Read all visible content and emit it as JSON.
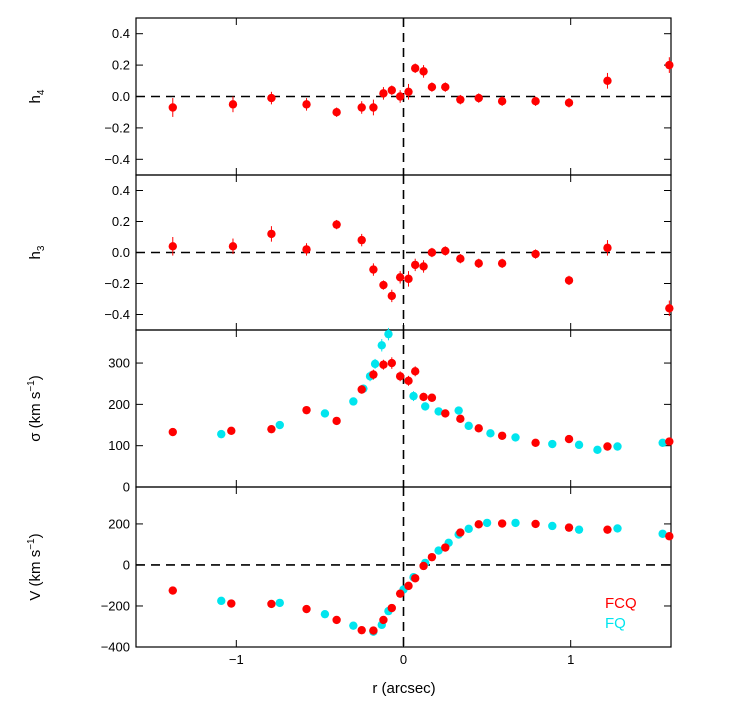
{
  "chart_data": {
    "type": "scatter",
    "xlabel": "r (arcsec)",
    "xlim": [
      -1.6,
      1.6
    ],
    "x_ticks": [
      -1,
      0,
      1
    ],
    "x_tick_labels": [
      "−1",
      "0",
      "1"
    ],
    "colors": {
      "FCQ": "#ff0000",
      "FQ": "#00e5ee"
    },
    "legend": {
      "position": "bottom-right",
      "entries": [
        "FCQ",
        "FQ"
      ]
    },
    "panels": [
      {
        "id": "h4",
        "ylabel_main": "h",
        "ylabel_sub": "4",
        "ylim": [
          -0.5,
          0.5
        ],
        "y_ticks": [
          0.4,
          0.2,
          0.0,
          -0.2,
          -0.4
        ],
        "y_tick_labels": [
          "0.4",
          "0.2",
          "0.0",
          "−0.2",
          "−0.4"
        ],
        "zero_line": true,
        "series": [
          {
            "name": "FCQ",
            "points": [
              {
                "x": -1.38,
                "y": -0.07,
                "err": 0.06
              },
              {
                "x": -1.02,
                "y": -0.05,
                "err": 0.05
              },
              {
                "x": -0.79,
                "y": -0.01,
                "err": 0.04
              },
              {
                "x": -0.58,
                "y": -0.05,
                "err": 0.04
              },
              {
                "x": -0.4,
                "y": -0.1,
                "err": 0.03
              },
              {
                "x": -0.25,
                "y": -0.07,
                "err": 0.04
              },
              {
                "x": -0.18,
                "y": -0.07,
                "err": 0.05
              },
              {
                "x": -0.12,
                "y": 0.02,
                "err": 0.04
              },
              {
                "x": -0.07,
                "y": 0.04,
                "err": 0.03
              },
              {
                "x": -0.02,
                "y": 0.0,
                "err": 0.04
              },
              {
                "x": 0.03,
                "y": 0.03,
                "err": 0.05
              },
              {
                "x": 0.07,
                "y": 0.18,
                "err": 0.03
              },
              {
                "x": 0.12,
                "y": 0.16,
                "err": 0.04
              },
              {
                "x": 0.17,
                "y": 0.06,
                "err": 0.03
              },
              {
                "x": 0.25,
                "y": 0.06,
                "err": 0.03
              },
              {
                "x": 0.34,
                "y": -0.02,
                "err": 0.03
              },
              {
                "x": 0.45,
                "y": -0.01,
                "err": 0.03
              },
              {
                "x": 0.59,
                "y": -0.03,
                "err": 0.03
              },
              {
                "x": 0.79,
                "y": -0.03,
                "err": 0.03
              },
              {
                "x": 0.99,
                "y": -0.04,
                "err": 0.03
              },
              {
                "x": 1.22,
                "y": 0.1,
                "err": 0.05
              },
              {
                "x": 1.59,
                "y": 0.2,
                "err": 0.05
              }
            ]
          }
        ]
      },
      {
        "id": "h3",
        "ylabel_main": "h",
        "ylabel_sub": "3",
        "ylim": [
          -0.5,
          0.5
        ],
        "y_ticks": [
          0.4,
          0.2,
          0.0,
          -0.2,
          -0.4
        ],
        "y_tick_labels": [
          "0.4",
          "0.2",
          "0.0",
          "−0.2",
          "−0.4"
        ],
        "zero_line": true,
        "series": [
          {
            "name": "FCQ",
            "points": [
              {
                "x": -1.38,
                "y": 0.04,
                "err": 0.06
              },
              {
                "x": -1.02,
                "y": 0.04,
                "err": 0.05
              },
              {
                "x": -0.79,
                "y": 0.12,
                "err": 0.05
              },
              {
                "x": -0.58,
                "y": 0.02,
                "err": 0.04
              },
              {
                "x": -0.4,
                "y": 0.18,
                "err": 0.03
              },
              {
                "x": -0.25,
                "y": 0.08,
                "err": 0.04
              },
              {
                "x": -0.18,
                "y": -0.11,
                "err": 0.04
              },
              {
                "x": -0.12,
                "y": -0.21,
                "err": 0.03
              },
              {
                "x": -0.07,
                "y": -0.28,
                "err": 0.04
              },
              {
                "x": -0.02,
                "y": -0.16,
                "err": 0.04
              },
              {
                "x": 0.03,
                "y": -0.17,
                "err": 0.05
              },
              {
                "x": 0.07,
                "y": -0.08,
                "err": 0.04
              },
              {
                "x": 0.12,
                "y": -0.09,
                "err": 0.04
              },
              {
                "x": 0.17,
                "y": 0.0,
                "err": 0.03
              },
              {
                "x": 0.25,
                "y": 0.01,
                "err": 0.03
              },
              {
                "x": 0.34,
                "y": -0.04,
                "err": 0.03
              },
              {
                "x": 0.45,
                "y": -0.07,
                "err": 0.03
              },
              {
                "x": 0.59,
                "y": -0.07,
                "err": 0.03
              },
              {
                "x": 0.79,
                "y": -0.01,
                "err": 0.03
              },
              {
                "x": 0.99,
                "y": -0.18,
                "err": 0.03
              },
              {
                "x": 1.22,
                "y": 0.03,
                "err": 0.05
              },
              {
                "x": 1.59,
                "y": -0.36,
                "err": 0.05
              }
            ]
          }
        ]
      },
      {
        "id": "sigma",
        "ylabel_main": "σ (km s",
        "ylabel_sup": "−1",
        "ylabel_tail": ")",
        "ylim": [
          0,
          380
        ],
        "y_ticks": [
          300,
          200,
          100,
          0
        ],
        "y_tick_labels": [
          "300",
          "200",
          "100",
          "0"
        ],
        "zero_line": false,
        "series": [
          {
            "name": "FQ",
            "points": [
              {
                "x": -1.09,
                "y": 128,
                "err": 8
              },
              {
                "x": -0.74,
                "y": 150,
                "err": 8
              },
              {
                "x": -0.47,
                "y": 178,
                "err": 8
              },
              {
                "x": -0.3,
                "y": 207,
                "err": 8
              },
              {
                "x": -0.24,
                "y": 238,
                "err": 10
              },
              {
                "x": -0.2,
                "y": 268,
                "err": 12
              },
              {
                "x": -0.17,
                "y": 298,
                "err": 12
              },
              {
                "x": -0.13,
                "y": 343,
                "err": 15
              },
              {
                "x": -0.09,
                "y": 370,
                "err": 15
              },
              {
                "x": 0.06,
                "y": 220,
                "err": 12
              },
              {
                "x": 0.13,
                "y": 195,
                "err": 10
              },
              {
                "x": 0.21,
                "y": 183,
                "err": 8
              },
              {
                "x": 0.33,
                "y": 185,
                "err": 8
              },
              {
                "x": 0.39,
                "y": 148,
                "err": 8
              },
              {
                "x": 0.52,
                "y": 130,
                "err": 8
              },
              {
                "x": 0.67,
                "y": 120,
                "err": 6
              },
              {
                "x": 0.89,
                "y": 104,
                "err": 6
              },
              {
                "x": 1.05,
                "y": 102,
                "err": 6
              },
              {
                "x": 1.16,
                "y": 90,
                "err": 6
              },
              {
                "x": 1.28,
                "y": 98,
                "err": 6
              },
              {
                "x": 1.55,
                "y": 107,
                "err": 8
              }
            ]
          },
          {
            "name": "FCQ",
            "points": [
              {
                "x": -1.38,
                "y": 133,
                "err": 8
              },
              {
                "x": -1.03,
                "y": 136,
                "err": 8
              },
              {
                "x": -0.79,
                "y": 140,
                "err": 8
              },
              {
                "x": -0.58,
                "y": 186,
                "err": 8
              },
              {
                "x": -0.4,
                "y": 160,
                "err": 8
              },
              {
                "x": -0.25,
                "y": 236,
                "err": 10
              },
              {
                "x": -0.18,
                "y": 272,
                "err": 12
              },
              {
                "x": -0.12,
                "y": 296,
                "err": 12
              },
              {
                "x": -0.07,
                "y": 300,
                "err": 14
              },
              {
                "x": -0.02,
                "y": 268,
                "err": 12
              },
              {
                "x": 0.03,
                "y": 257,
                "err": 12
              },
              {
                "x": 0.07,
                "y": 280,
                "err": 12
              },
              {
                "x": 0.12,
                "y": 218,
                "err": 10
              },
              {
                "x": 0.17,
                "y": 216,
                "err": 8
              },
              {
                "x": 0.25,
                "y": 178,
                "err": 8
              },
              {
                "x": 0.34,
                "y": 165,
                "err": 8
              },
              {
                "x": 0.45,
                "y": 142,
                "err": 6
              },
              {
                "x": 0.59,
                "y": 124,
                "err": 6
              },
              {
                "x": 0.79,
                "y": 107,
                "err": 6
              },
              {
                "x": 0.99,
                "y": 116,
                "err": 6
              },
              {
                "x": 1.22,
                "y": 98,
                "err": 6
              },
              {
                "x": 1.59,
                "y": 110,
                "err": 8
              }
            ]
          }
        ]
      },
      {
        "id": "V",
        "ylabel_main": "V (km s",
        "ylabel_sup": "−1",
        "ylabel_tail": ")",
        "ylim": [
          -400,
          380
        ],
        "y_ticks": [
          200,
          0,
          -200,
          -400
        ],
        "y_tick_labels": [
          "200",
          "0",
          "−200",
          "−400"
        ],
        "zero_line": true,
        "series": [
          {
            "name": "FQ",
            "points": [
              {
                "x": -1.09,
                "y": -175,
                "err": 8
              },
              {
                "x": -0.74,
                "y": -185,
                "err": 8
              },
              {
                "x": -0.47,
                "y": -240,
                "err": 8
              },
              {
                "x": -0.3,
                "y": -296,
                "err": 8
              },
              {
                "x": -0.18,
                "y": -325,
                "err": 10
              },
              {
                "x": -0.13,
                "y": -292,
                "err": 10
              },
              {
                "x": -0.09,
                "y": -225,
                "err": 10
              },
              {
                "x": 0.0,
                "y": -120,
                "err": 8
              },
              {
                "x": 0.06,
                "y": -60,
                "err": 8
              },
              {
                "x": 0.13,
                "y": 10,
                "err": 8
              },
              {
                "x": 0.21,
                "y": 70,
                "err": 8
              },
              {
                "x": 0.27,
                "y": 108,
                "err": 8
              },
              {
                "x": 0.33,
                "y": 148,
                "err": 8
              },
              {
                "x": 0.39,
                "y": 176,
                "err": 8
              },
              {
                "x": 0.5,
                "y": 205,
                "err": 8
              },
              {
                "x": 0.67,
                "y": 205,
                "err": 8
              },
              {
                "x": 0.89,
                "y": 190,
                "err": 8
              },
              {
                "x": 1.05,
                "y": 172,
                "err": 8
              },
              {
                "x": 1.28,
                "y": 178,
                "err": 8
              },
              {
                "x": 1.55,
                "y": 152,
                "err": 8
              }
            ]
          },
          {
            "name": "FCQ",
            "points": [
              {
                "x": -1.38,
                "y": -125,
                "err": 8
              },
              {
                "x": -1.03,
                "y": -188,
                "err": 8
              },
              {
                "x": -0.79,
                "y": -190,
                "err": 8
              },
              {
                "x": -0.58,
                "y": -215,
                "err": 8
              },
              {
                "x": -0.4,
                "y": -268,
                "err": 8
              },
              {
                "x": -0.25,
                "y": -318,
                "err": 10
              },
              {
                "x": -0.18,
                "y": -320,
                "err": 10
              },
              {
                "x": -0.12,
                "y": -268,
                "err": 10
              },
              {
                "x": -0.07,
                "y": -210,
                "err": 10
              },
              {
                "x": -0.02,
                "y": -140,
                "err": 8
              },
              {
                "x": 0.03,
                "y": -102,
                "err": 8
              },
              {
                "x": 0.07,
                "y": -65,
                "err": 8
              },
              {
                "x": 0.12,
                "y": -5,
                "err": 8
              },
              {
                "x": 0.17,
                "y": 38,
                "err": 8
              },
              {
                "x": 0.25,
                "y": 85,
                "err": 8
              },
              {
                "x": 0.34,
                "y": 158,
                "err": 8
              },
              {
                "x": 0.45,
                "y": 198,
                "err": 8
              },
              {
                "x": 0.59,
                "y": 202,
                "err": 8
              },
              {
                "x": 0.79,
                "y": 200,
                "err": 8
              },
              {
                "x": 0.99,
                "y": 182,
                "err": 8
              },
              {
                "x": 1.22,
                "y": 172,
                "err": 8
              },
              {
                "x": 1.59,
                "y": 140,
                "err": 8
              }
            ]
          }
        ]
      }
    ]
  }
}
